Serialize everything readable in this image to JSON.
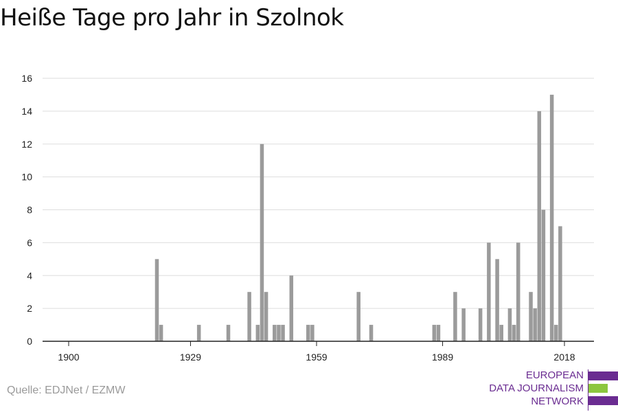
{
  "title": "Heiße Tage pro Jahr in Szolnok",
  "source": "Quelle: EDJNet / EZMW",
  "logo": {
    "lines": [
      "EUROPEAN",
      "DATA JOURNALISM",
      "NETWORK"
    ],
    "colors": {
      "purple": "#6a2c91",
      "green": "#8cc63f"
    }
  },
  "chart_data": {
    "type": "bar",
    "title": "Heiße Tage pro Jahr in Szolnok",
    "xlabel": "",
    "ylabel": "",
    "xlim": [
      1900,
      2018
    ],
    "ylim": [
      0,
      16
    ],
    "x_ticks": [
      1900,
      1929,
      1959,
      1989,
      2018
    ],
    "y_ticks": [
      0,
      2,
      4,
      6,
      8,
      10,
      12,
      14,
      16
    ],
    "grid": true,
    "bar_color": "#9b9b9b",
    "x": [
      1921,
      1922,
      1931,
      1938,
      1943,
      1945,
      1946,
      1947,
      1949,
      1950,
      1951,
      1953,
      1957,
      1958,
      1969,
      1972,
      1987,
      1988,
      1992,
      1994,
      1998,
      2000,
      2002,
      2003,
      2005,
      2006,
      2007,
      2010,
      2011,
      2012,
      2013,
      2015,
      2016,
      2017
    ],
    "values": [
      5,
      1,
      1,
      1,
      3,
      1,
      12,
      3,
      1,
      1,
      1,
      4,
      1,
      1,
      3,
      1,
      1,
      1,
      3,
      2,
      2,
      6,
      5,
      1,
      2,
      1,
      6,
      3,
      2,
      14,
      8,
      15,
      1,
      7
    ]
  }
}
